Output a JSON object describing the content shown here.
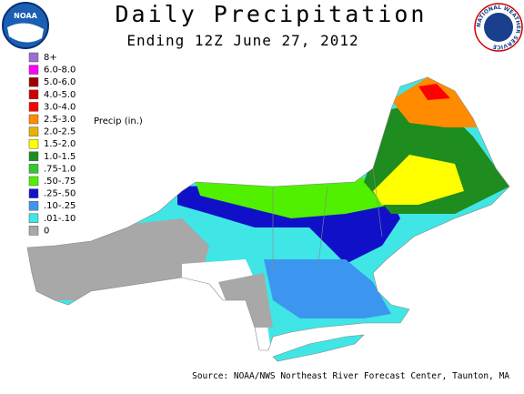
{
  "header": {
    "title": "Daily Precipitation",
    "subtitle": "Ending 12Z June 27, 2012"
  },
  "logos": {
    "left": "NOAA",
    "right": "NATIONAL WEATHER SERVICE"
  },
  "legend": {
    "title": "Precip (in.)",
    "items": [
      {
        "label": "8+",
        "color": "#9b6fcf"
      },
      {
        "label": "6.0-8.0",
        "color": "#ff00ff"
      },
      {
        "label": "5.0-6.0",
        "color": "#a00000"
      },
      {
        "label": "4.0-5.0",
        "color": "#d00000"
      },
      {
        "label": "3.0-4.0",
        "color": "#ff0000"
      },
      {
        "label": "2.5-3.0",
        "color": "#ff8c00"
      },
      {
        "label": "2.0-2.5",
        "color": "#e6b400"
      },
      {
        "label": "1.5-2.0",
        "color": "#ffff00"
      },
      {
        "label": "1.0-1.5",
        "color": "#1e8c1e"
      },
      {
        "label": ".75-1.0",
        "color": "#33c833"
      },
      {
        "label": ".50-.75",
        "color": "#50f000"
      },
      {
        "label": ".25-.50",
        "color": "#1010c8"
      },
      {
        "label": ".10-.25",
        "color": "#3c96f0"
      },
      {
        "label": ".01-.10",
        "color": "#40e6e6"
      },
      {
        "label": "0",
        "color": "#a8a8a8"
      }
    ]
  },
  "footer": {
    "source": "Source: NOAA/NWS Northeast River Forecast Center, Taunton, MA"
  }
}
